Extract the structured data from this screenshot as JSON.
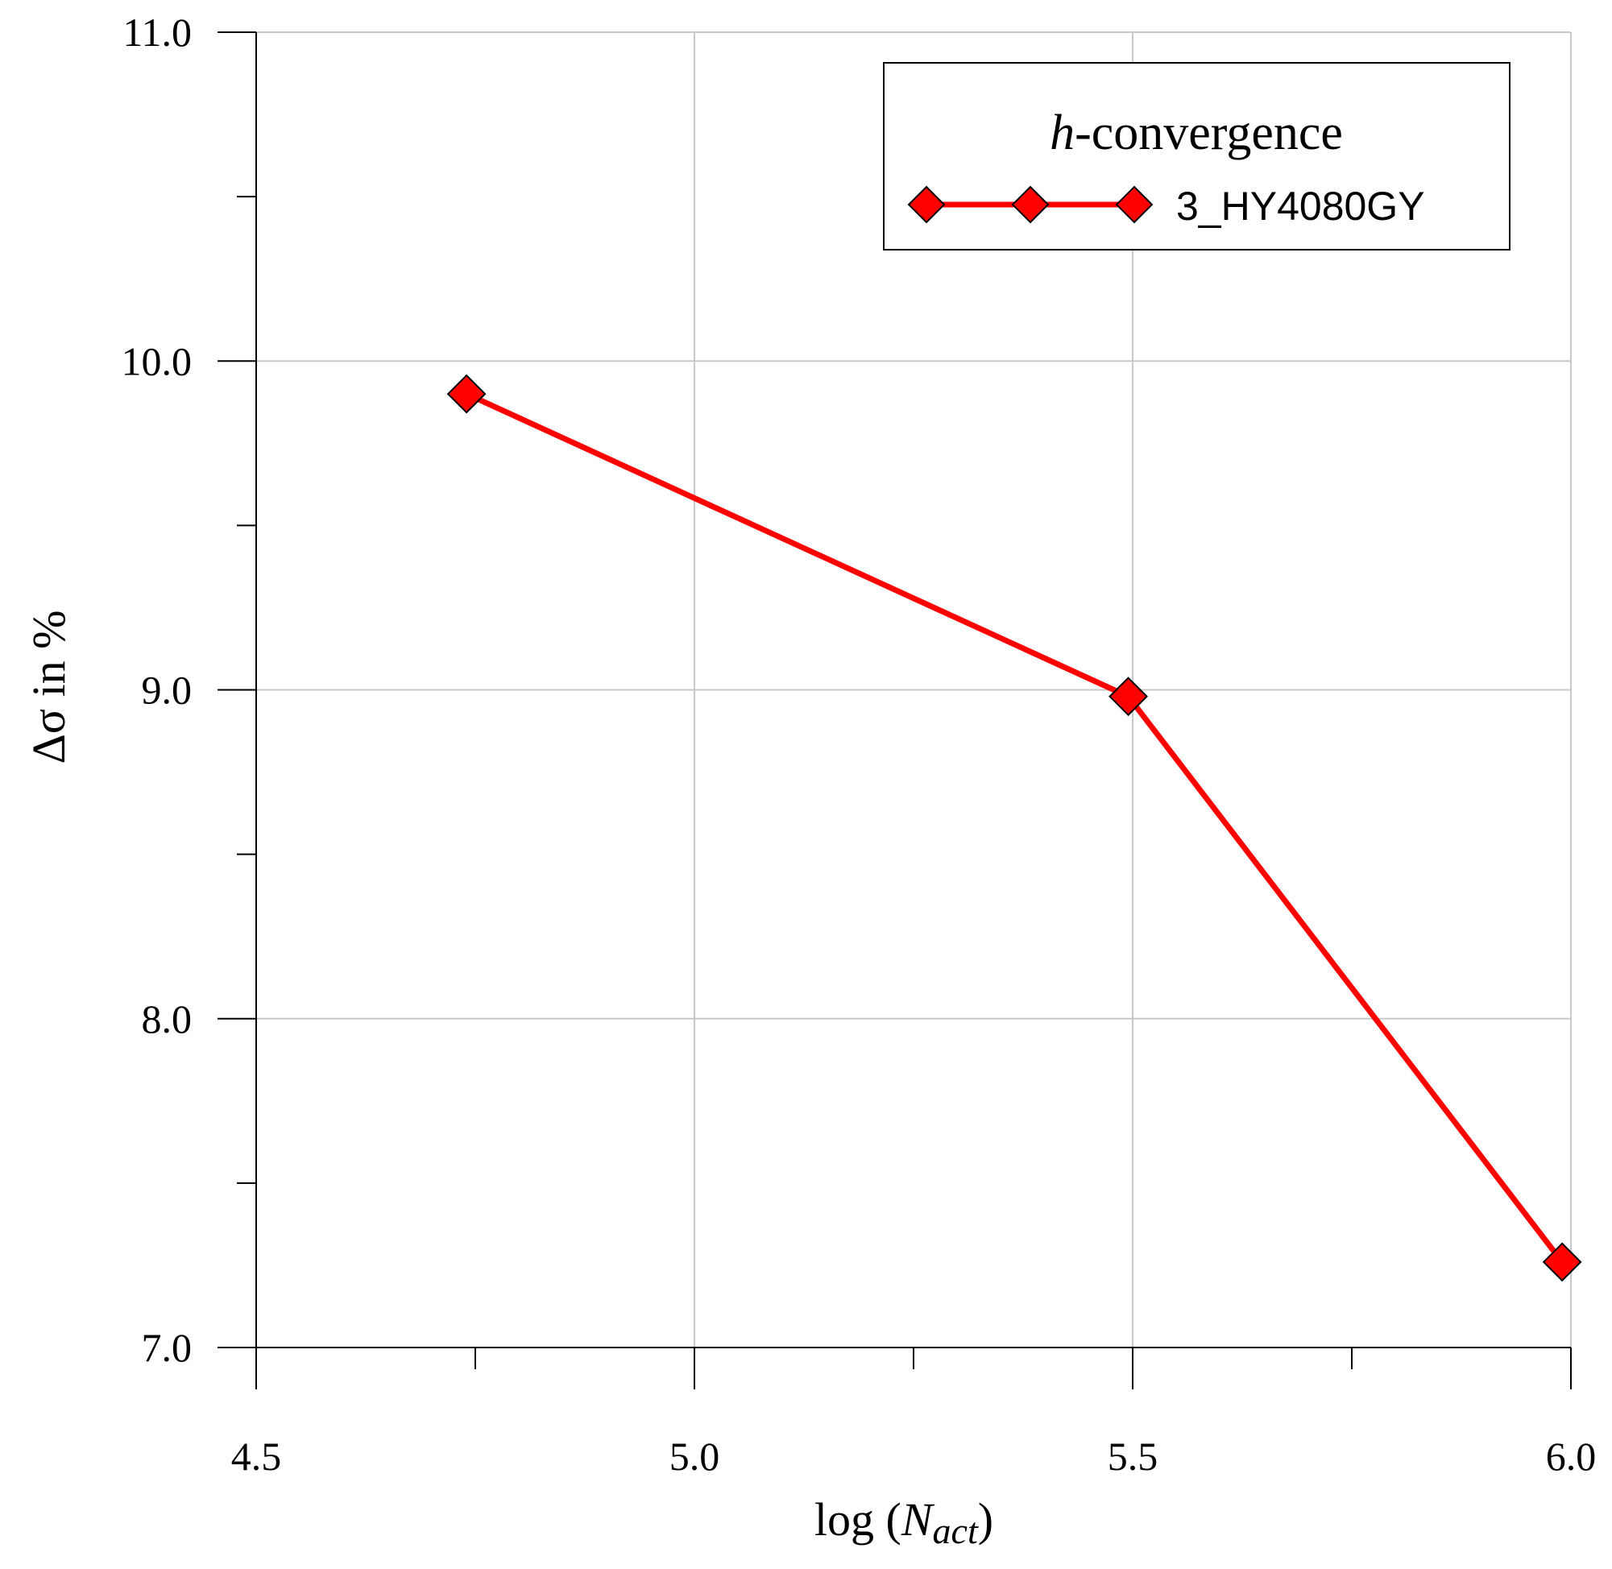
{
  "chart_data": {
    "type": "line",
    "title": "",
    "xlabel_parts": {
      "prefix": "log (",
      "variable": "N",
      "subscript": "act",
      "suffix": ")"
    },
    "ylabel": "Δσ in %",
    "xlim": [
      4.5,
      6.0
    ],
    "ylim": [
      7.0,
      11.0
    ],
    "x_ticks": [
      4.5,
      5.0,
      5.5,
      6.0
    ],
    "x_tick_labels": [
      "4.5",
      "5.0",
      "5.5",
      "6.0"
    ],
    "x_minor_ticks": [
      4.75,
      5.25,
      5.75
    ],
    "y_ticks": [
      7.0,
      8.0,
      9.0,
      10.0,
      11.0
    ],
    "y_tick_labels": [
      "7.0",
      "8.0",
      "9.0",
      "10.0",
      "11.0"
    ],
    "y_minor_ticks": [
      7.5,
      8.5,
      9.5,
      10.5
    ],
    "grid": true,
    "legend": {
      "position": "top-right",
      "title_italic": "h",
      "title_rest": "-convergence"
    },
    "series": [
      {
        "name": "3_HY4080GY",
        "color": "#ff0000",
        "marker": "diamond",
        "x": [
          4.74,
          5.495,
          5.99
        ],
        "y": [
          9.9,
          8.98,
          7.26
        ]
      }
    ]
  }
}
